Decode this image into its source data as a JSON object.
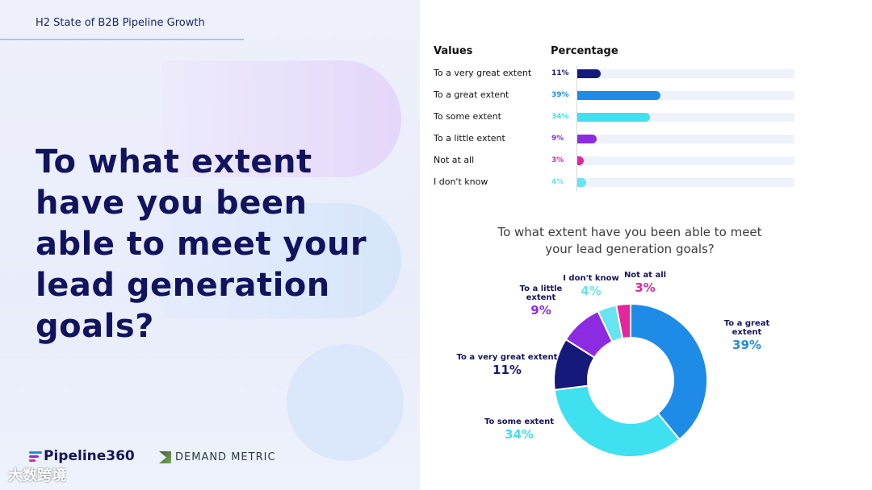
{
  "header": {
    "title": "H2 State of B2B Pipeline Growth"
  },
  "question": "To what extent have you been able to meet your lead generation goals?",
  "logos": {
    "pipeline": "Pipeline360",
    "demand_metric": "DEMAND METRIC"
  },
  "watermark": "大数跨境",
  "chart_data": [
    {
      "type": "bar",
      "orientation": "horizontal",
      "headers": {
        "values": "Values",
        "percentage": "Percentage"
      },
      "categories": [
        "To a very great extent",
        "To a great extent",
        "To some extent",
        "To a little extent",
        "Not at all",
        "I don't know"
      ],
      "values": [
        11,
        39,
        34,
        9,
        3,
        4
      ],
      "value_labels": [
        "11%",
        "39%",
        "34%",
        "9%",
        "3%",
        "4%"
      ],
      "colors": [
        "#14197a",
        "#1e8be6",
        "#3fe0ef",
        "#8d2be2",
        "#e5269f",
        "#67e3f2"
      ],
      "xlim": [
        0,
        100
      ]
    },
    {
      "type": "pie",
      "donut": true,
      "title": "To what extent have you been able to meet your lead generation goals?",
      "title_lines": [
        "To what extent have you been able to meet",
        "your lead generation goals?"
      ],
      "slices": [
        {
          "name": "To a great extent",
          "label_lines": [
            "To a great",
            "extent"
          ],
          "value": 39,
          "label": "39%",
          "color": "#1e8be6"
        },
        {
          "name": "To some extent",
          "label_lines": [
            "To some extent"
          ],
          "value": 34,
          "label": "34%",
          "color": "#3fe0ef"
        },
        {
          "name": "To a very great extent",
          "label_lines": [
            "To a very great extent"
          ],
          "value": 11,
          "label": "11%",
          "color": "#14197a"
        },
        {
          "name": "To a little extent",
          "label_lines": [
            "To a little",
            "extent"
          ],
          "value": 9,
          "label": "9%",
          "color": "#8d2be2"
        },
        {
          "name": "I don't know",
          "label_lines": [
            "I don't know"
          ],
          "value": 4,
          "label": "4%",
          "color": "#67e3f2"
        },
        {
          "name": "Not at all",
          "label_lines": [
            "Not at all"
          ],
          "value": 3,
          "label": "3%",
          "color": "#e5269f"
        }
      ]
    }
  ]
}
